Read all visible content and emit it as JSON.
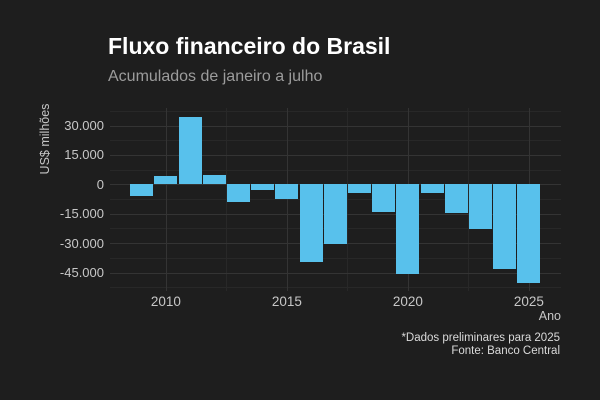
{
  "header": {
    "title": "Fluxo financeiro do Brasil",
    "subtitle": "Acumulados de janeiro a julho"
  },
  "caption": {
    "line1": "*Dados preliminares para 2025",
    "line2": "Fonte: Banco Central"
  },
  "chart_data": {
    "type": "bar",
    "title": "Fluxo financeiro do Brasil",
    "subtitle": "Acumulados de janeiro a julho",
    "xlabel": "Ano",
    "ylabel": "US$ milhões",
    "categories": [
      2009,
      2010,
      2011,
      2012,
      2013,
      2014,
      2015,
      2016,
      2017,
      2018,
      2019,
      2020,
      2021,
      2022,
      2023,
      2024,
      2025
    ],
    "values": [
      -6000,
      4400,
      34300,
      4700,
      -9300,
      -2900,
      -7500,
      -39500,
      -30500,
      -4300,
      -14300,
      -45800,
      -4600,
      -14800,
      -22700,
      -43200,
      -50300
    ],
    "unit": "US$ milhões",
    "ylim": [
      -54400,
      38900
    ],
    "yticks": [
      30000,
      15000,
      0,
      -15000,
      -30000,
      -45000
    ],
    "ytick_labels": [
      "30.000",
      "15.000",
      "0",
      "-15.000",
      "-30.000",
      "-45.000"
    ],
    "yticks_minor": [
      37500,
      22500,
      7500,
      -7500,
      -22500,
      -37500,
      -52500
    ],
    "xticks": [
      2010,
      2015,
      2020,
      2025
    ],
    "xtick_labels": [
      "2010",
      "2015",
      "2020",
      "2025"
    ],
    "xticks_minor": [
      2012.5,
      2017.5,
      2022.5
    ],
    "grid": true,
    "legend": false,
    "colors": {
      "background": "#1E1E1E",
      "bar": "#58C1EC",
      "title_text": "#FFFFFF",
      "subtitle_text": "#9C9C9C",
      "axis_text": "#C7C7C7",
      "caption_text": "#DADADA",
      "grid_major": "#343434",
      "grid_minor": "#282828"
    }
  }
}
